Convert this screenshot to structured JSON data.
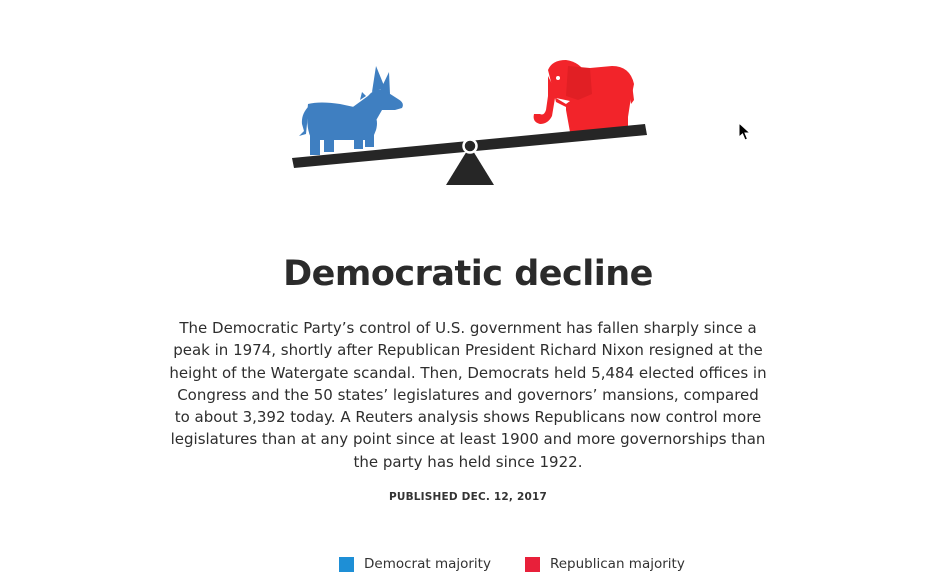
{
  "article": {
    "title": "Democratic decline",
    "body": "The Democratic Party’s control of U.S. government has fallen sharply since a peak in 1974, shortly after Republican President Richard Nixon resigned at the height of the Watergate scandal. Then, Democrats held 5,484 elected offices in Congress and the 50 states’ legislatures and governors’ mansions, compared to about 3,392 today. A Reuters analysis shows Republicans now control more legislatures than at any point since at least 1900 and more governorships than the party has held since 1922.",
    "published": "PUBLISHED DEC. 12, 2017"
  },
  "illustration": {
    "icons": [
      "donkey-icon",
      "elephant-icon",
      "seesaw-icon"
    ],
    "donkey_color": "#3f7fc1",
    "elephant_color": "#f2242a",
    "seesaw_color": "#262626"
  },
  "legend": {
    "items": [
      {
        "label": "Democrat majority",
        "color": "#1e8fd6"
      },
      {
        "label": "Republican majority",
        "color": "#e8203a"
      }
    ]
  }
}
